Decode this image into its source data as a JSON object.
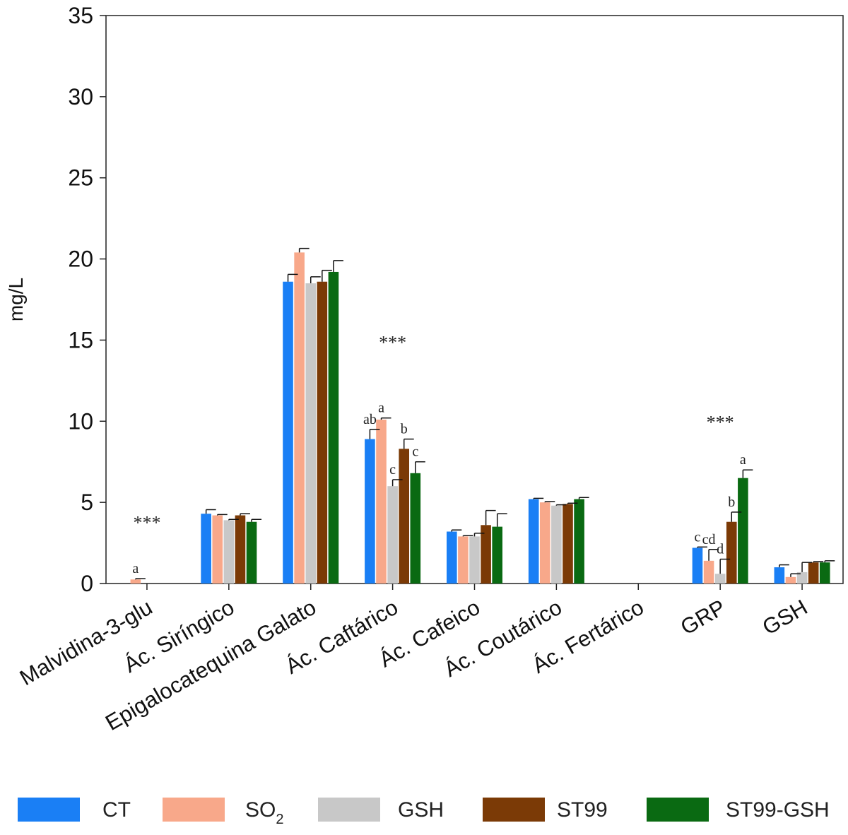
{
  "chart_data": {
    "type": "bar",
    "ylabel": "mg/L",
    "xlabel": "",
    "ylim": [
      0,
      35
    ],
    "yticks": [
      0,
      5,
      10,
      15,
      20,
      25,
      30,
      35
    ],
    "grid": false,
    "legend_position": "bottom",
    "categories": [
      "Malvidina-3-glu",
      "Ác. Siríngico",
      "Epigalocatequina Galato",
      "Ác. Caftárico",
      "Ác. Cafeico",
      "Ác. Coutárico",
      "Ác. Fertárico",
      "GRP",
      "GSH"
    ],
    "series": [
      {
        "name": "CT",
        "name_sub": "",
        "color": "#1a7ff5",
        "values": [
          0,
          4.3,
          18.6,
          8.9,
          3.2,
          5.2,
          0,
          2.2,
          1.0
        ],
        "errors": [
          0,
          0.25,
          0.45,
          0.6,
          0.1,
          0.05,
          0,
          0.05,
          0.15
        ]
      },
      {
        "name": "SO",
        "name_sub": "2",
        "color": "#f8a88a",
        "values": [
          0.25,
          4.2,
          20.4,
          10.1,
          2.9,
          5.0,
          0,
          1.4,
          0.4
        ],
        "errors": [
          0.05,
          0.05,
          0.25,
          0.1,
          0.05,
          0.05,
          0,
          0.7,
          0.2
        ]
      },
      {
        "name": "GSH",
        "name_sub": "",
        "color": "#c8c8c8",
        "values": [
          0,
          3.9,
          18.5,
          6.0,
          2.9,
          4.8,
          0,
          0.6,
          0.7
        ],
        "errors": [
          0,
          0.05,
          0.4,
          0.4,
          0.2,
          0.05,
          0,
          0.9,
          0.6
        ]
      },
      {
        "name": "ST99",
        "name_sub": "",
        "color": "#7b3a06",
        "values": [
          0,
          4.2,
          18.6,
          8.3,
          3.6,
          4.9,
          0,
          3.8,
          1.3
        ],
        "errors": [
          0,
          0.1,
          0.7,
          0.6,
          0.9,
          0.05,
          0,
          0.6,
          0.05
        ]
      },
      {
        "name": "ST99-GSH",
        "name_sub": "",
        "color": "#0a6a12",
        "values": [
          0,
          3.8,
          19.2,
          6.8,
          3.5,
          5.2,
          0,
          6.5,
          1.3
        ],
        "errors": [
          0,
          0.15,
          0.7,
          0.7,
          0.8,
          0.1,
          0,
          0.5,
          0.1
        ]
      }
    ],
    "annotations": [
      {
        "category": "Malvidina-3-glu",
        "series": "SO",
        "text": "a"
      },
      {
        "category": "Ác. Caftárico",
        "series": "CT",
        "text": "ab"
      },
      {
        "category": "Ác. Caftárico",
        "series": "SO",
        "text": "a"
      },
      {
        "category": "Ác. Caftárico",
        "series": "GSH",
        "text": "c"
      },
      {
        "category": "Ác. Caftárico",
        "series": "ST99",
        "text": "b"
      },
      {
        "category": "Ác. Caftárico",
        "series": "ST99-GSH",
        "text": "c"
      },
      {
        "category": "GRP",
        "series": "CT",
        "text": "c"
      },
      {
        "category": "GRP",
        "series": "SO",
        "text": "cd"
      },
      {
        "category": "GRP",
        "series": "GSH",
        "text": "d"
      },
      {
        "category": "GRP",
        "series": "ST99",
        "text": "b"
      },
      {
        "category": "GRP",
        "series": "ST99-GSH",
        "text": "a"
      }
    ],
    "significance": [
      {
        "category": "Malvidina-3-glu",
        "text": "***",
        "y": 3.8
      },
      {
        "category": "Ác. Caftárico",
        "text": "***",
        "y": 14.9
      },
      {
        "category": "GRP",
        "text": "***",
        "y": 10.0
      }
    ]
  }
}
